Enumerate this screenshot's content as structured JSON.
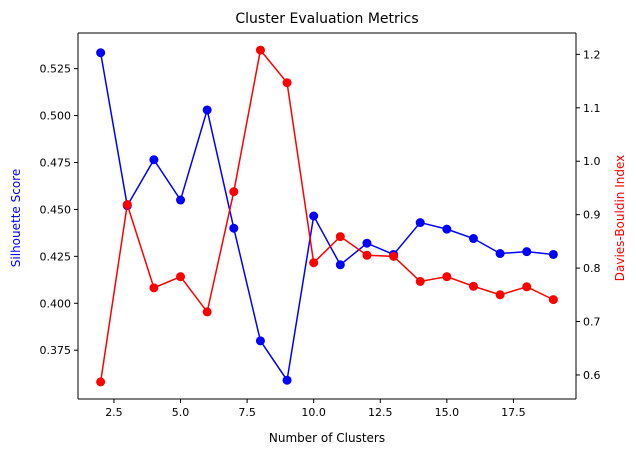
{
  "chart_data": {
    "type": "line",
    "title": "Cluster Evaluation Metrics",
    "xlabel": "Number of Clusters",
    "ylabel_left": "Silhouette Score",
    "ylabel_right": "Davies-Bouldin Index",
    "xlim": [
      1.15,
      19.85
    ],
    "ylim_left": [
      0.349,
      0.544
    ],
    "ylim_right": [
      0.555,
      1.24
    ],
    "xticks": [
      2.5,
      5.0,
      7.5,
      10.0,
      12.5,
      15.0,
      17.5
    ],
    "xtick_labels": [
      "2.5",
      "5.0",
      "7.5",
      "10.0",
      "12.5",
      "15.0",
      "17.5"
    ],
    "yticks_left": [
      0.375,
      0.4,
      0.425,
      0.45,
      0.475,
      0.5,
      0.525
    ],
    "ytick_labels_left": [
      "0.375",
      "0.400",
      "0.425",
      "0.450",
      "0.475",
      "0.500",
      "0.525"
    ],
    "yticks_right": [
      0.6,
      0.7,
      0.8,
      0.9,
      1.0,
      1.1,
      1.2
    ],
    "ytick_labels_right": [
      "0.6",
      "0.7",
      "0.8",
      "0.9",
      "1.0",
      "1.1",
      "1.2"
    ],
    "x": [
      2,
      3,
      4,
      5,
      6,
      7,
      8,
      9,
      10,
      11,
      12,
      13,
      14,
      15,
      16,
      17,
      18,
      19
    ],
    "series": [
      {
        "axis": "left",
        "color": "#0000ff",
        "values": [
          0.5335,
          0.452,
          0.4765,
          0.455,
          0.503,
          0.44,
          0.38,
          0.359,
          0.4465,
          0.4205,
          0.432,
          0.426,
          0.443,
          0.4395,
          0.4345,
          0.4265,
          0.4275,
          0.426
        ]
      },
      {
        "axis": "right",
        "color": "#ff0000",
        "values": [
          0.587,
          0.919,
          0.763,
          0.784,
          0.718,
          0.943,
          1.208,
          1.147,
          0.81,
          0.859,
          0.824,
          0.822,
          0.775,
          0.784,
          0.766,
          0.75,
          0.765,
          0.741
        ]
      }
    ],
    "grid": false,
    "legend": "none"
  }
}
